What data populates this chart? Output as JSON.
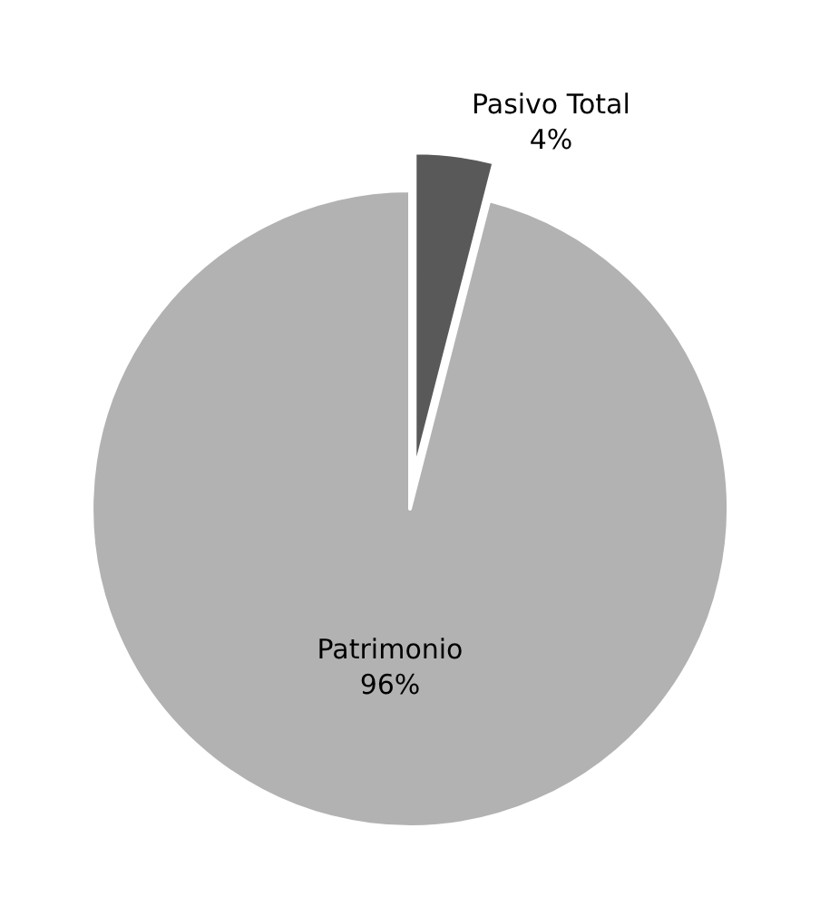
{
  "chart_data": {
    "type": "pie",
    "categories": [
      "Pasivo Total",
      "Patrimonio"
    ],
    "values": [
      4,
      96
    ],
    "value_labels": [
      "4%",
      "96%"
    ],
    "colors": [
      "#595959",
      "#b2b2b2"
    ]
  }
}
